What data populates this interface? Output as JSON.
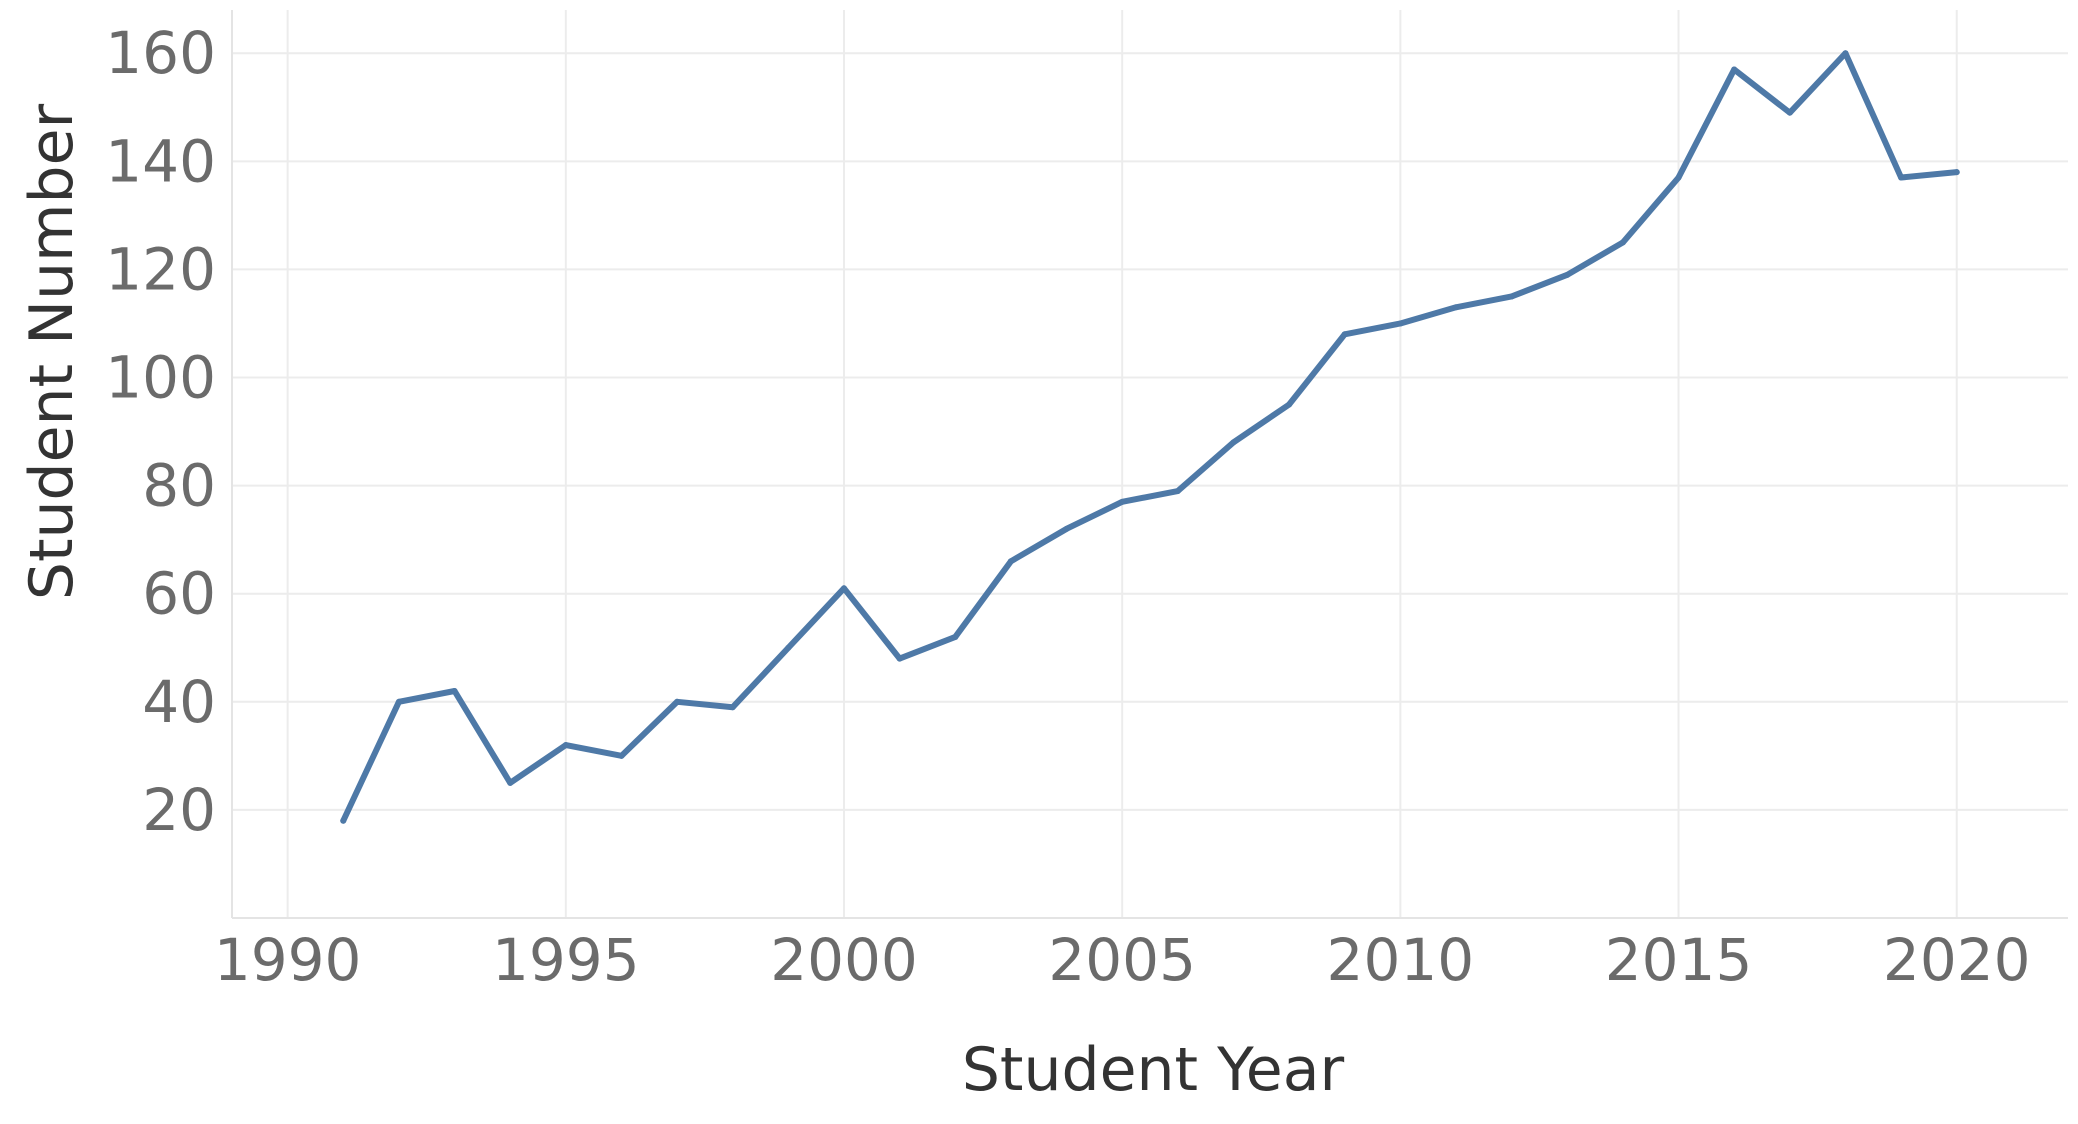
{
  "chart_data": {
    "type": "line",
    "title": "",
    "xlabel": "Student Year",
    "ylabel": "Student Number",
    "xlim": [
      1989,
      2022
    ],
    "ylim": [
      0,
      168
    ],
    "xticks": [
      1990,
      1995,
      2000,
      2005,
      2010,
      2015,
      2020
    ],
    "yticks": [
      20,
      40,
      60,
      80,
      100,
      120,
      140,
      160
    ],
    "grid": true,
    "line_color": "#4e79a7",
    "series": [
      {
        "x": [
          1991,
          1992,
          1993,
          1994,
          1995,
          1996,
          1997,
          1998,
          1999,
          2000,
          2001,
          2002,
          2003,
          2004,
          2005,
          2006,
          2007,
          2008,
          2009,
          2010,
          2011,
          2012,
          2013,
          2014,
          2015,
          2016,
          2017,
          2018,
          2019,
          2020
        ],
        "values": [
          18,
          40,
          42,
          25,
          32,
          30,
          40,
          39,
          50,
          61,
          48,
          52,
          66,
          72,
          77,
          79,
          88,
          95,
          108,
          110,
          113,
          115,
          119,
          125,
          137,
          157,
          149,
          160,
          137,
          138
        ]
      }
    ]
  }
}
